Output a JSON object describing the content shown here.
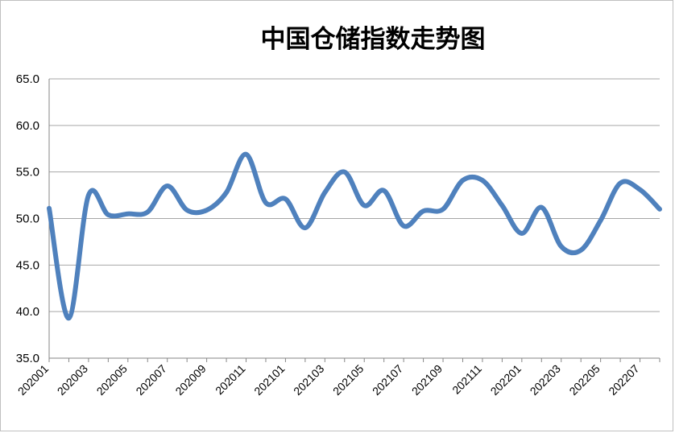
{
  "chart_data": {
    "type": "line",
    "title": "中国仓储指数走势图",
    "xlabel": "",
    "ylabel": "",
    "ylim": [
      35.0,
      65.0
    ],
    "yticks": [
      "35.0",
      "40.0",
      "45.0",
      "50.0",
      "55.0",
      "60.0",
      "65.0"
    ],
    "grid": true,
    "legend": "none",
    "line_color": "#4f81bd",
    "categories": [
      "202001",
      "202002",
      "202003",
      "202004",
      "202005",
      "202006",
      "202007",
      "202008",
      "202009",
      "202010",
      "202011",
      "202012",
      "202101",
      "202102",
      "202103",
      "202104",
      "202105",
      "202106",
      "202107",
      "202108",
      "202109",
      "202110",
      "202111",
      "202112",
      "202201",
      "202202",
      "202203",
      "202204",
      "202205",
      "202206",
      "202207",
      "202208"
    ],
    "x_tick_labels": [
      "202001",
      "202003",
      "202005",
      "202007",
      "202009",
      "202011",
      "202101",
      "202103",
      "202105",
      "202107",
      "202109",
      "202111",
      "202201",
      "202203",
      "202205",
      "202207"
    ],
    "values": [
      51.1,
      39.3,
      52.5,
      50.4,
      50.5,
      50.7,
      53.5,
      50.9,
      50.9,
      52.8,
      56.9,
      51.7,
      52.1,
      49.0,
      52.8,
      55.0,
      51.4,
      53.0,
      49.2,
      50.8,
      51.0,
      54.1,
      54.1,
      51.4,
      48.4,
      51.2,
      47.0,
      46.6,
      49.8,
      53.8,
      53.1,
      51.0
    ]
  }
}
